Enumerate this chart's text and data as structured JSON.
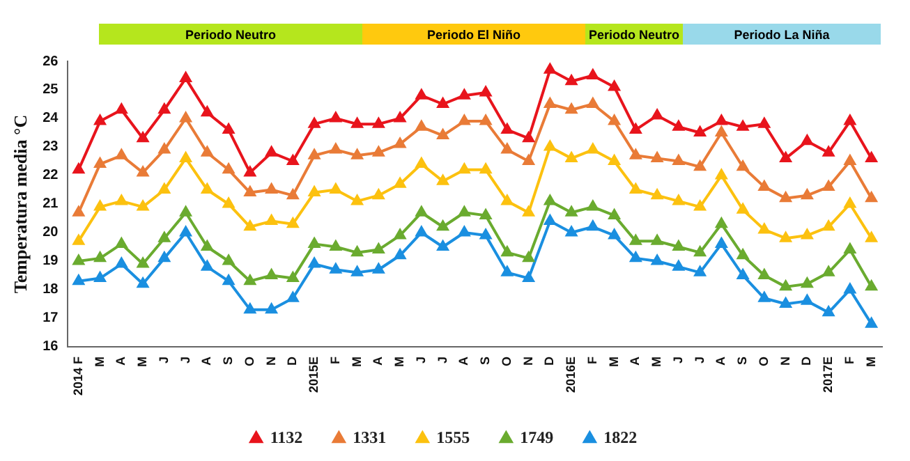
{
  "chart_data": {
    "type": "line",
    "ylabel": "Temperatura media °C",
    "categories": [
      "2014 F",
      "M",
      "A",
      "M",
      "J",
      "J",
      "A",
      "S",
      "O",
      "N",
      "D",
      "2015E",
      "F",
      "M",
      "A",
      "M",
      "J",
      "J",
      "A",
      "S",
      "O",
      "N",
      "D",
      "2016E",
      "F",
      "M",
      "A",
      "M",
      "J",
      "J",
      "A",
      "S",
      "O",
      "N",
      "D",
      "2017E",
      "F",
      "M"
    ],
    "series": [
      {
        "name": "1132",
        "color": "#e8141c",
        "values": [
          22.2,
          23.9,
          24.3,
          23.3,
          24.3,
          25.4,
          24.2,
          23.6,
          22.1,
          22.8,
          22.5,
          23.8,
          24.0,
          23.8,
          23.8,
          24.0,
          24.8,
          24.5,
          24.8,
          24.9,
          23.6,
          23.3,
          25.7,
          25.3,
          25.5,
          25.1,
          23.6,
          24.1,
          23.7,
          23.5,
          23.9,
          23.7,
          23.8,
          22.6,
          23.2,
          22.8,
          23.9,
          22.6
        ]
      },
      {
        "name": "1331",
        "color": "#e97b37",
        "values": [
          20.7,
          22.4,
          22.7,
          22.1,
          22.9,
          24.0,
          22.8,
          22.2,
          21.4,
          21.5,
          21.3,
          22.7,
          22.9,
          22.7,
          22.8,
          23.1,
          23.7,
          23.4,
          23.9,
          23.9,
          22.9,
          22.5,
          24.5,
          24.3,
          24.5,
          23.9,
          22.7,
          22.6,
          22.5,
          22.3,
          23.5,
          22.3,
          21.6,
          21.2,
          21.3,
          21.6,
          22.5,
          21.2
        ]
      },
      {
        "name": "1555",
        "color": "#fcc10f",
        "values": [
          19.7,
          20.9,
          21.1,
          20.9,
          21.5,
          22.6,
          21.5,
          21.0,
          20.2,
          20.4,
          20.3,
          21.4,
          21.5,
          21.1,
          21.3,
          21.7,
          22.4,
          21.8,
          22.2,
          22.2,
          21.1,
          20.7,
          23.0,
          22.6,
          22.9,
          22.5,
          21.5,
          21.3,
          21.1,
          20.9,
          22.0,
          20.8,
          20.1,
          19.8,
          19.9,
          20.2,
          21.0,
          19.8
        ]
      },
      {
        "name": "1749",
        "color": "#6aab2f",
        "values": [
          19.0,
          19.1,
          19.6,
          18.9,
          19.8,
          20.7,
          19.5,
          19.0,
          18.3,
          18.5,
          18.4,
          19.6,
          19.5,
          19.3,
          19.4,
          19.9,
          20.7,
          20.2,
          20.7,
          20.6,
          19.3,
          19.1,
          21.1,
          20.7,
          20.9,
          20.6,
          19.7,
          19.7,
          19.5,
          19.3,
          20.3,
          19.2,
          18.5,
          18.1,
          18.2,
          18.6,
          19.4,
          18.1
        ]
      },
      {
        "name": "1822",
        "color": "#1a8fe0",
        "values": [
          18.3,
          18.4,
          18.9,
          18.2,
          19.1,
          20.0,
          18.8,
          18.3,
          17.3,
          17.3,
          17.7,
          18.9,
          18.7,
          18.6,
          18.7,
          19.2,
          20.0,
          19.5,
          20.0,
          19.9,
          18.6,
          18.4,
          20.4,
          20.0,
          20.2,
          19.9,
          19.1,
          19.0,
          18.8,
          18.6,
          19.6,
          18.5,
          17.7,
          17.5,
          17.6,
          17.2,
          18.0,
          16.8
        ]
      }
    ],
    "ylim": [
      16,
      26
    ],
    "yticks": [
      16,
      17,
      18,
      19,
      20,
      21,
      22,
      23,
      24,
      25,
      26
    ],
    "grid": false,
    "legend": "bottom",
    "marker": "triangle",
    "line_style": "solid",
    "annotations": [
      "Periodo Neutro",
      "Periodo El Niño",
      "Periodo Neutro",
      "Periodo La Niña"
    ]
  }
}
